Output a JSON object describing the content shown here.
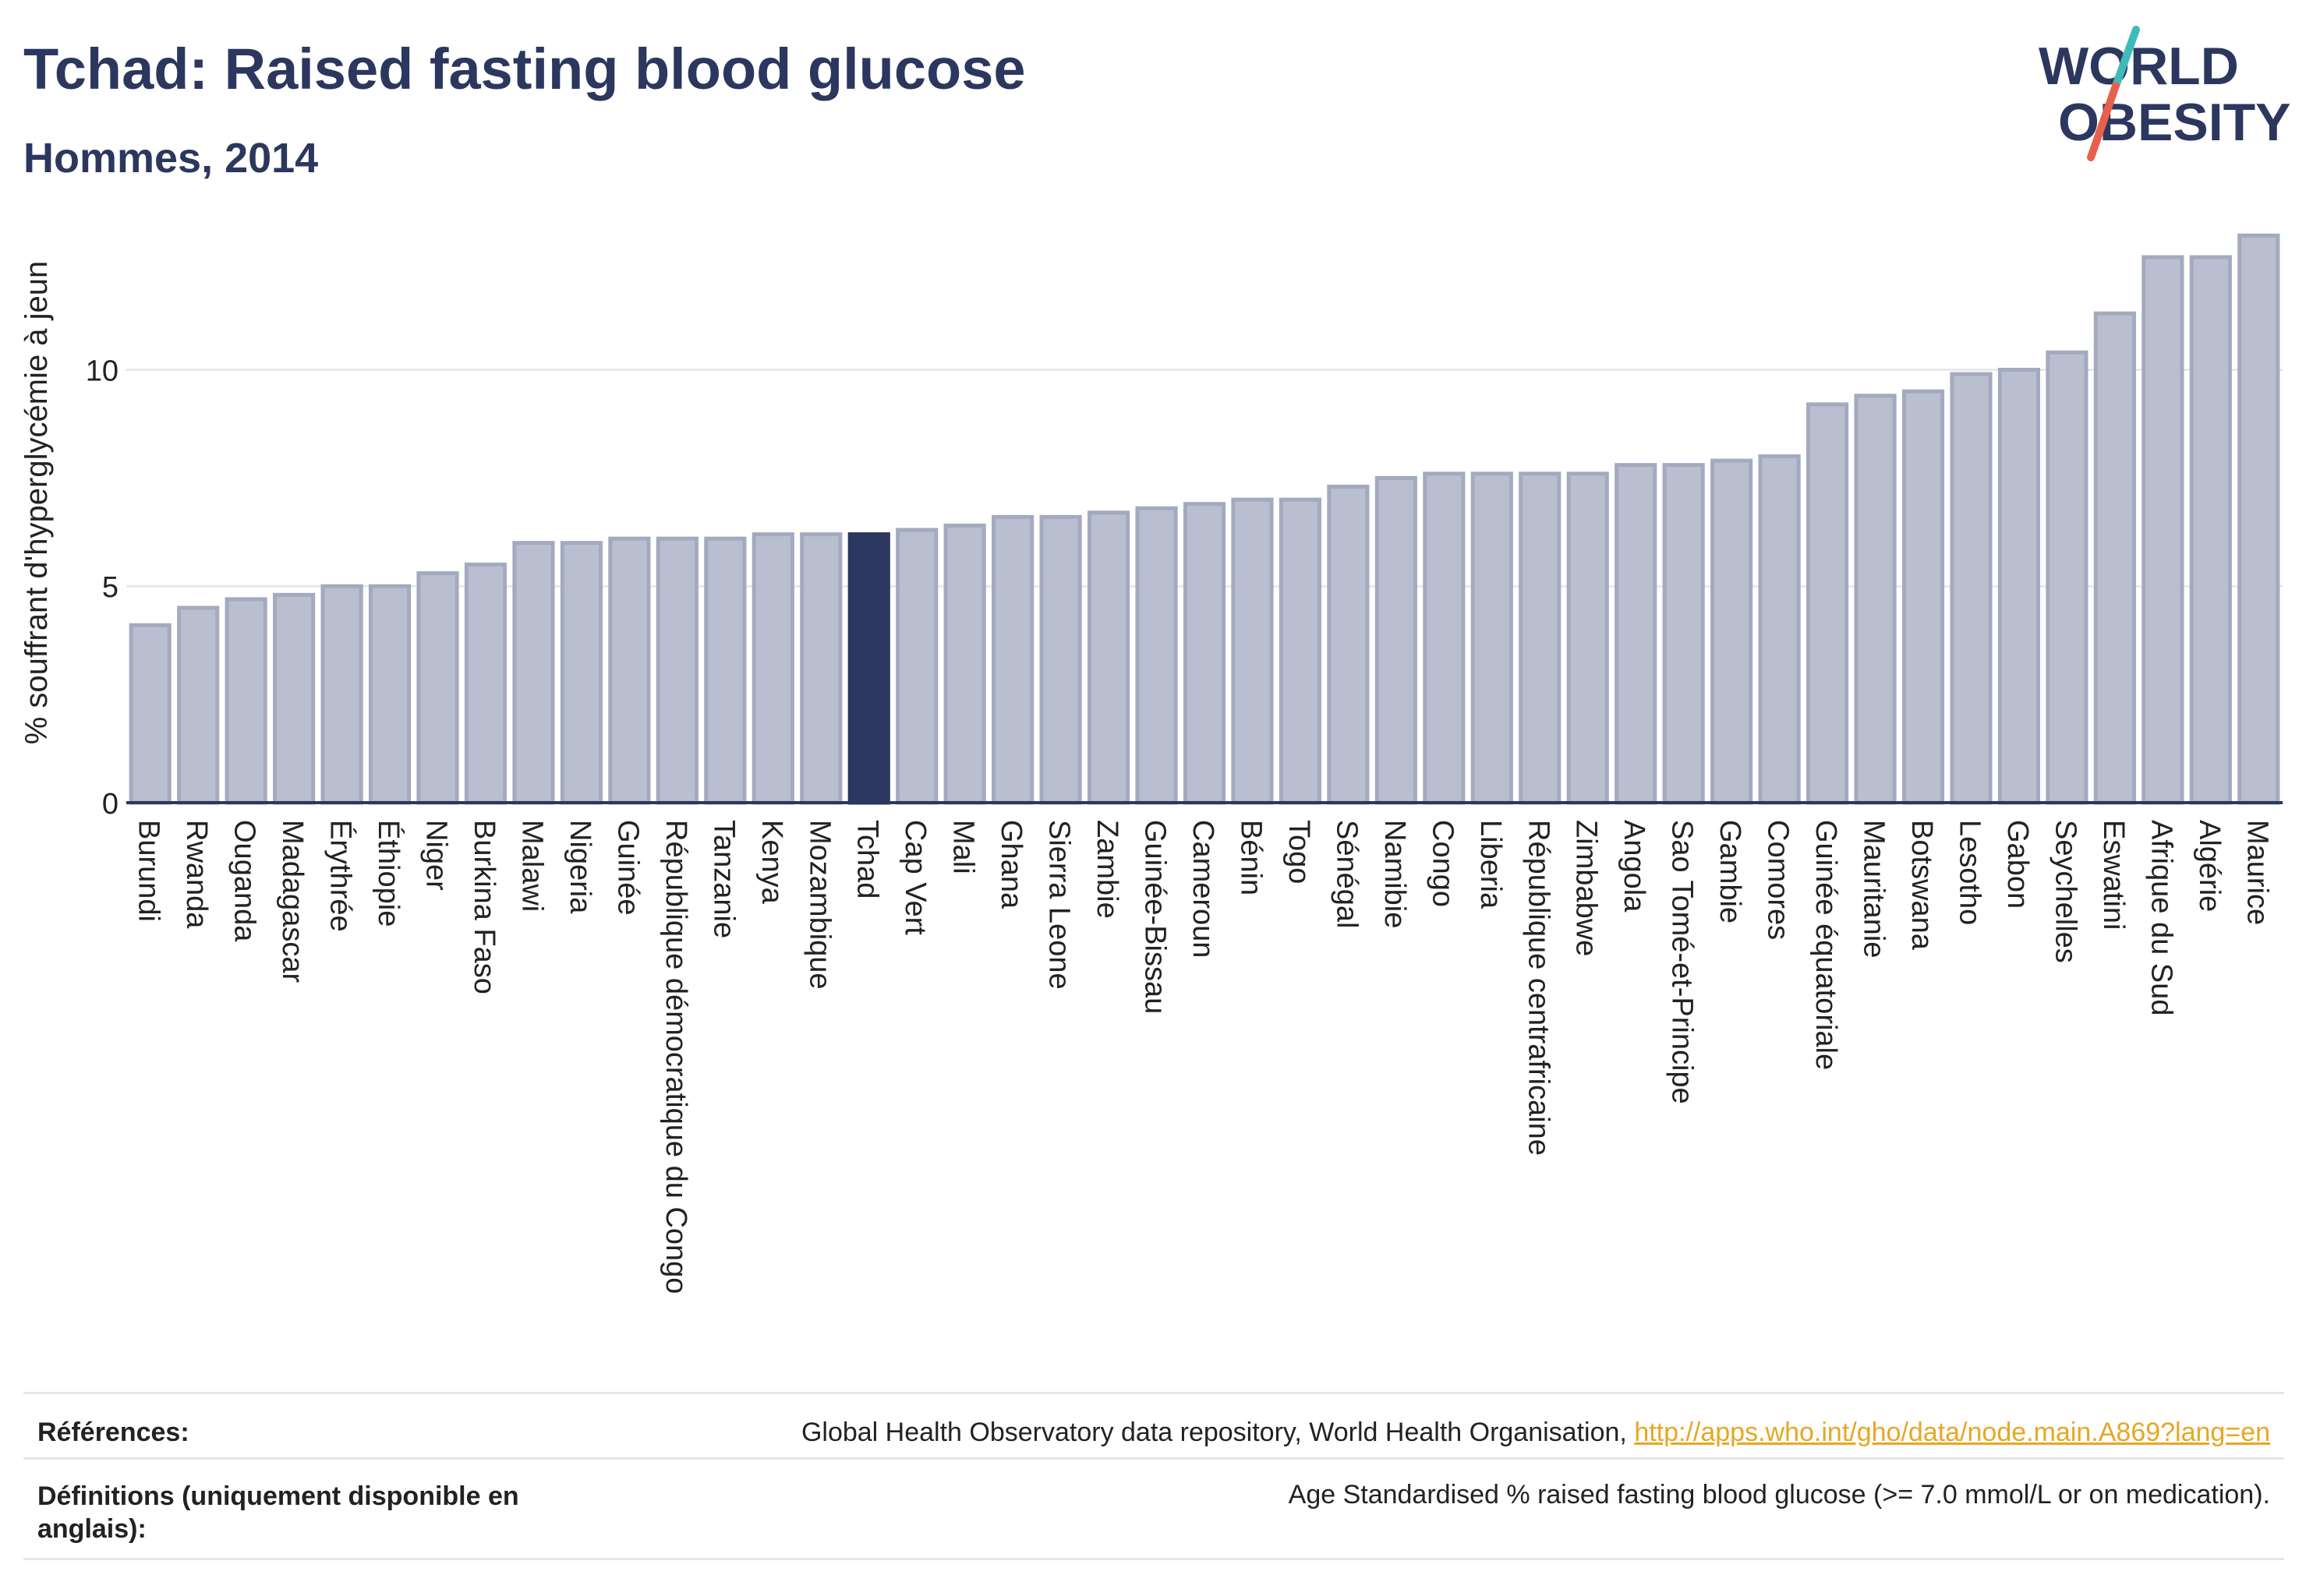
{
  "header": {
    "title": "Tchad: Raised fasting blood glucose",
    "subtitle": "Hommes, 2014"
  },
  "logo": {
    "line1": "WORLD",
    "line2": "OBESITY",
    "colors": {
      "text": "#2b375e",
      "slash_teal": "#3dbbb9",
      "slash_red": "#e8604c"
    }
  },
  "colors": {
    "bar_default": "#b9bfcf",
    "bar_default_stroke": "#a3aac0",
    "bar_highlight": "#2b375e",
    "axis": "#2b375e",
    "grid": "#e8e8e8"
  },
  "chart_data": {
    "type": "bar",
    "title": "Tchad: Raised fasting blood glucose",
    "subtitle": "Hommes, 2014",
    "xlabel": "",
    "ylabel": "% souffrant d'hyperglycémie à jeun",
    "ylim": [
      0,
      13.5
    ],
    "yticks": [
      0,
      5,
      10
    ],
    "grid": true,
    "highlight": "Tchad",
    "categories": [
      "Burundi",
      "Rwanda",
      "Ouganda",
      "Madagascar",
      "Érythrée",
      "Éthiopie",
      "Niger",
      "Burkina Faso",
      "Malawi",
      "Nigeria",
      "Guinée",
      "République démocratique du Congo",
      "Tanzanie",
      "Kenya",
      "Mozambique",
      "Tchad",
      "Cap Vert",
      "Mali",
      "Ghana",
      "Sierra Leone",
      "Zambie",
      "Guinée-Bissau",
      "Cameroun",
      "Bénin",
      "Togo",
      "Sénégal",
      "Namibie",
      "Congo",
      "Liberia",
      "République centrafricaine",
      "Zimbabwe",
      "Angola",
      "Sao Tomé-et-Principe",
      "Gambie",
      "Comores",
      "Guinée équatoriale",
      "Mauritanie",
      "Botswana",
      "Lesotho",
      "Gabon",
      "Seychelles",
      "Eswatini",
      "Afrique du Sud",
      "Algérie",
      "Maurice"
    ],
    "values": [
      4.1,
      4.5,
      4.7,
      4.8,
      5.0,
      5.0,
      5.3,
      5.5,
      6.0,
      6.0,
      6.1,
      6.1,
      6.1,
      6.2,
      6.2,
      6.2,
      6.3,
      6.4,
      6.6,
      6.6,
      6.7,
      6.8,
      6.9,
      7.0,
      7.0,
      7.3,
      7.5,
      7.6,
      7.6,
      7.6,
      7.6,
      7.8,
      7.8,
      7.9,
      8.0,
      9.2,
      9.4,
      9.5,
      9.9,
      10.0,
      10.4,
      11.3,
      12.6,
      12.6,
      13.1
    ]
  },
  "references": {
    "label": "Références:",
    "text": "Global Health Observatory data repository, World Health Organisation, ",
    "link": "http://apps.who.int/gho/data/node.main.A869?lang=en"
  },
  "definitions": {
    "label_line1": "Définitions (uniquement disponible en",
    "label_line2": "anglais):",
    "text": "Age Standardised % raised fasting blood glucose (>= 7.0 mmol/L or on medication)."
  }
}
